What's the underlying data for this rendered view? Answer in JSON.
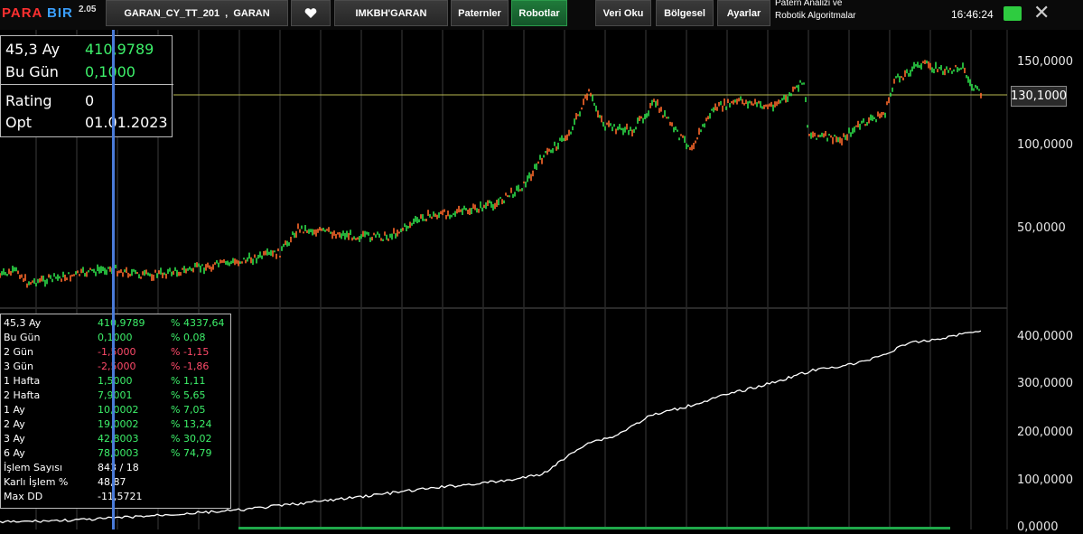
{
  "app": {
    "logo_part1": "PARA",
    "logo_part2": "BIR",
    "version": "2.05"
  },
  "toolbar": {
    "instrument": "GARAN_CY_TT_201  ,  GARAN",
    "favorite_icon": "heart-icon",
    "data_source": "IMKBH'GARAN",
    "patterns": "Paternler",
    "robots": "Robotlar",
    "read_data": "Veri Oku",
    "regional": "Bölgesel",
    "settings": "Ayarlar",
    "info_line1": "Patern Analizi ve",
    "info_line2": "Robotik Algoritmalar",
    "clock": "16:46:24",
    "close_icon": "close-icon"
  },
  "info_box": {
    "row1_label": "45,3 Ay",
    "row1_value": "410,9789",
    "row2_label": "Bu Gün",
    "row2_value": "0,1000",
    "row3_label": "Rating",
    "row3_value": "0",
    "row4_label": "Opt",
    "row4_value": "01.01.2023"
  },
  "price_chart": {
    "y_ticks": [
      "150,0000",
      "100,0000",
      "50,0000"
    ],
    "current_price": "130,1000",
    "reference_level": 130.1
  },
  "equity_chart": {
    "y_ticks": [
      "400,0000",
      "300,0000",
      "200,0000",
      "100,0000",
      "0,0000"
    ]
  },
  "stats": [
    {
      "label": "45,3 Ay",
      "value": "410,9789",
      "pct": "% 4337,64",
      "positive": true
    },
    {
      "label": "Bu Gün",
      "value": "0,1000",
      "pct": "% 0,08",
      "positive": true
    },
    {
      "label": "2 Gün",
      "value": "-1,5000",
      "pct": "% -1,15",
      "positive": false
    },
    {
      "label": "3 Gün",
      "value": "-2,5000",
      "pct": "% -1,86",
      "positive": false
    },
    {
      "label": "1 Hafta",
      "value": "1,5000",
      "pct": "% 1,11",
      "positive": true
    },
    {
      "label": "2 Hafta",
      "value": "7,9001",
      "pct": "% 5,65",
      "positive": true
    },
    {
      "label": "1 Ay",
      "value": "10,0002",
      "pct": "% 7,05",
      "positive": true
    },
    {
      "label": "2 Ay",
      "value": "19,0002",
      "pct": "% 13,24",
      "positive": true
    },
    {
      "label": "3 Ay",
      "value": "42,8003",
      "pct": "% 30,02",
      "positive": true
    },
    {
      "label": "6 Ay",
      "value": "78,0003",
      "pct": "% 74,79",
      "positive": true
    },
    {
      "label": "İşlem Sayısı",
      "value": "843 / 18",
      "pct": "",
      "positive": null
    },
    {
      "label": "Karlı İşlem %",
      "value": "48,87",
      "pct": "",
      "positive": null
    },
    {
      "label": "Max DD",
      "value": "-11,5721",
      "pct": "",
      "positive": null
    }
  ],
  "colors": {
    "positive": "#3df06a",
    "negative": "#ff4a6a",
    "up_candle": "#2ee04a",
    "down_candle": "#ff6a2a",
    "equity_line": "#ffffff",
    "cursor": "#4a7bd8"
  }
}
